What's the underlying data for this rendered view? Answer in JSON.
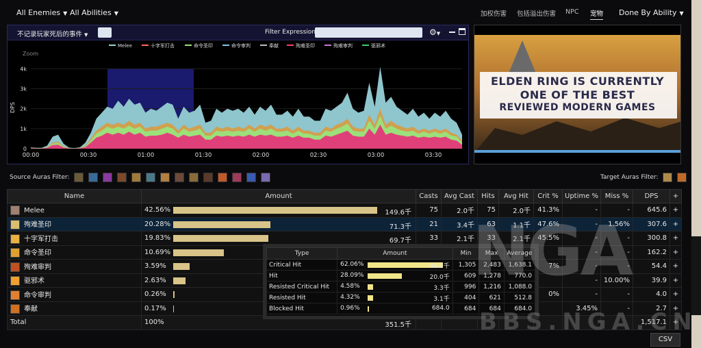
{
  "topbar": {
    "enemies": "All Enemies",
    "abilities": "All Abilities",
    "right_tabs": [
      "加权伤害",
      "包括溢出伤害",
      "NPC",
      "宠物"
    ],
    "active_tab": "宠物",
    "mode": "Done By Ability"
  },
  "graph": {
    "event_filter": "不记录玩家死后的事件",
    "filter_label": "Filter Expression:",
    "filter_value": "",
    "zoom_label": "Zoom",
    "ylabel": "DPS",
    "legend": [
      "Melee",
      "十字军打击",
      "命令圣印",
      "命令审判",
      "奉献",
      "殉难圣印",
      "殉难审判",
      "驱邪术"
    ],
    "legend_colors": [
      "#9ad4d8",
      "#ff6b5b",
      "#9be07a",
      "#7fc8e8",
      "#bdbdbd",
      "#ff3f6b",
      "#c77bd8",
      "#3fcf6f"
    ]
  },
  "chart_data": {
    "type": "area",
    "x_ticks": [
      "00:00",
      "00:30",
      "01:00",
      "01:30",
      "02:00",
      "02:30",
      "03:00",
      "03:30"
    ],
    "y_ticks": [
      "0",
      "1k",
      "2k",
      "3k",
      "4k"
    ],
    "ylim": [
      0,
      4800
    ],
    "xlim": [
      0,
      225
    ],
    "highlight_range": [
      40,
      85
    ],
    "series": [
      {
        "name": "Melee",
        "color": "#8fc5cc",
        "values": [
          60,
          40,
          40,
          150,
          600,
          700,
          250,
          50,
          30,
          70,
          300,
          800,
          1500,
          1800,
          2100,
          2000,
          2400,
          2100,
          2500,
          2200,
          2300,
          1800,
          2000,
          1900,
          2100,
          2300,
          2200,
          1500,
          2100,
          1800,
          1900,
          2200,
          1300,
          1400,
          2000,
          1800,
          2000,
          1900,
          2000,
          1800,
          2100,
          1700,
          2100,
          1900,
          2200,
          1700,
          1700,
          1900,
          1600,
          2000,
          1600,
          1600,
          1400,
          1400,
          2000,
          1900,
          2100,
          2300,
          2800,
          2000,
          1800,
          1900,
          3300,
          2100,
          4100,
          2300,
          2600,
          2100,
          1900,
          1700,
          2000,
          1600,
          1800,
          1500,
          1800,
          1600,
          1900,
          1500,
          1300,
          700
        ]
      },
      {
        "name": "命令审判",
        "color": "#d0a050",
        "values": [
          30,
          20,
          20,
          80,
          300,
          350,
          120,
          20,
          20,
          40,
          150,
          500,
          900,
          1100,
          1300,
          1200,
          1300,
          1200,
          1400,
          1200,
          1300,
          1000,
          1100,
          1100,
          1200,
          1300,
          1200,
          900,
          1200,
          1000,
          1100,
          1200,
          800,
          800,
          1100,
          1000,
          1100,
          1000,
          1100,
          1000,
          1200,
          1000,
          1200,
          1100,
          1200,
          1000,
          1000,
          1100,
          900,
          1100,
          900,
          900,
          800,
          800,
          1100,
          1000,
          1200,
          1300,
          1500,
          1100,
          1000,
          1000,
          1700,
          1200,
          2000,
          1200,
          1400,
          1200,
          1100,
          1000,
          1100,
          900,
          1000,
          900,
          1000,
          900,
          1000,
          800,
          700,
          400
        ]
      },
      {
        "name": "命令圣印",
        "color": "#9be07a",
        "values": [
          25,
          15,
          15,
          60,
          250,
          280,
          90,
          15,
          15,
          30,
          120,
          400,
          750,
          900,
          1100,
          1000,
          1100,
          1000,
          1150,
          1000,
          1100,
          850,
          900,
          900,
          1000,
          1100,
          1000,
          750,
          1000,
          850,
          900,
          1000,
          650,
          650,
          900,
          850,
          900,
          850,
          900,
          850,
          1000,
          850,
          1000,
          900,
          1000,
          850,
          850,
          900,
          750,
          900,
          750,
          750,
          650,
          650,
          900,
          850,
          1000,
          1100,
          1250,
          900,
          850,
          850,
          1400,
          1000,
          1650,
          1000,
          1150,
          1000,
          900,
          850,
          900,
          750,
          850,
          750,
          850,
          750,
          850,
          650,
          600,
          300
        ]
      },
      {
        "name": "十字军打击",
        "color": "#e0407a",
        "values": [
          20,
          10,
          10,
          40,
          180,
          200,
          60,
          10,
          10,
          20,
          80,
          300,
          550,
          650,
          800,
          700,
          800,
          700,
          850,
          700,
          800,
          600,
          650,
          650,
          700,
          800,
          700,
          550,
          700,
          600,
          650,
          700,
          450,
          450,
          650,
          600,
          650,
          600,
          650,
          600,
          700,
          600,
          700,
          650,
          700,
          600,
          600,
          650,
          550,
          650,
          550,
          550,
          450,
          450,
          650,
          600,
          700,
          800,
          900,
          650,
          600,
          600,
          1000,
          700,
          1200,
          700,
          800,
          700,
          650,
          600,
          650,
          550,
          600,
          550,
          600,
          550,
          600,
          450,
          400,
          200
        ]
      }
    ]
  },
  "ad": {
    "line1": "ELDEN RING IS CURRENTLY",
    "line2": "ONE OF THE BEST",
    "line3": "REVIEWED MODERN GAMES"
  },
  "auras": {
    "source_label": "Source Auras Filter:",
    "target_label": "Target Auras Filter:",
    "source_colors": [
      "#6a5a3a",
      "#3a6a9a",
      "#8a3aa0",
      "#7a4a2a",
      "#a07a3a",
      "#4a7a8a",
      "#b08040",
      "#6a4a3a",
      "#8a6a3a",
      "#5a3a2a",
      "#c05a2a",
      "#a03a5a",
      "#3a5ab0",
      "#7a6ab0"
    ],
    "target_colors": [
      "#b08a4a",
      "#c06a2a"
    ]
  },
  "table": {
    "headers": [
      "Name",
      "Amount",
      "Casts",
      "Avg Cast",
      "Hits",
      "Avg Hit",
      "Crit %",
      "Uptime %",
      "Miss %",
      "DPS",
      "+"
    ],
    "rows": [
      {
        "name": "Melee",
        "pct": "42.56%",
        "bar": 0.9925,
        "amount": "149.6千",
        "casts": "75",
        "avg_cast": "2.0千",
        "hits": "75",
        "avg_hit": "2.0千",
        "crit": "41.3%",
        "uptime": "-",
        "miss": "-",
        "dps": "645.6",
        "icon": "#a08070"
      },
      {
        "name": "殉难圣印",
        "pct": "20.28%",
        "bar": 0.473,
        "amount": "71.3千",
        "casts": "21",
        "avg_cast": "3.4千",
        "hits": "63",
        "avg_hit": "1.1千",
        "crit": "47.6%",
        "uptime": "-",
        "miss": "1.56%",
        "dps": "307.6",
        "icon": "#d8c070"
      },
      {
        "name": "十字军打击",
        "pct": "19.83%",
        "bar": 0.462,
        "amount": "69.7千",
        "casts": "33",
        "avg_cast": "2.1千",
        "hits": "33",
        "avg_hit": "2.1千",
        "crit": "45.5%",
        "uptime": "-",
        "miss": "-",
        "dps": "300.8",
        "icon": "#e8b040"
      },
      {
        "name": "命令圣印",
        "pct": "10.69%",
        "bar": 0.248,
        "amount": "",
        "casts": "",
        "avg_cast": "",
        "hits": "",
        "avg_hit": "",
        "crit": "",
        "uptime": "-",
        "miss": "-",
        "dps": "162.2",
        "icon": "#e0a030"
      },
      {
        "name": "殉难审判",
        "pct": "3.59%",
        "bar": 0.08,
        "amount": "",
        "casts": "",
        "avg_cast": "",
        "hits": "",
        "avg_hit": "",
        "crit": "7%",
        "uptime": "-",
        "miss": "-",
        "dps": "54.4",
        "icon": "#c05020"
      },
      {
        "name": "驱邪术",
        "pct": "2.63%",
        "bar": 0.06,
        "amount": "",
        "casts": "",
        "avg_cast": "",
        "hits": "",
        "avg_hit": "",
        "crit": "",
        "uptime": "-",
        "miss": "10.00%",
        "dps": "39.9",
        "icon": "#f0a030"
      },
      {
        "name": "命令审判",
        "pct": "0.26%",
        "bar": 0.006,
        "amount": "",
        "casts": "",
        "avg_cast": "",
        "hits": "",
        "avg_hit": "",
        "crit": "0%",
        "uptime": "-",
        "miss": "-",
        "dps": "4.0",
        "icon": "#e08030"
      },
      {
        "name": "奉献",
        "pct": "0.17%",
        "bar": 0.004,
        "amount": "",
        "casts": "",
        "avg_cast": "",
        "hits": "",
        "avg_hit": "",
        "crit": "",
        "uptime": "3.45%",
        "miss": "-",
        "dps": "2.7",
        "icon": "#d07020"
      }
    ],
    "total": {
      "name": "Total",
      "pct": "100%",
      "amount": "351.5千",
      "dps": "1,517.1"
    }
  },
  "tooltip": {
    "headers": [
      "Type",
      "Amount",
      "Min",
      "Max",
      "Average"
    ],
    "rows": [
      {
        "type": "Critical Hit",
        "pct": "62.06%",
        "bar": 1.0,
        "amount": "44.2千",
        "min": "1,305",
        "max": "2,483",
        "avg": "1,638.1"
      },
      {
        "type": "Hit",
        "pct": "28.09%",
        "bar": 0.45,
        "amount": "20.0千",
        "min": "609",
        "max": "1,278",
        "avg": "770.0"
      },
      {
        "type": "Resisted Critical Hit",
        "pct": "4.58%",
        "bar": 0.074,
        "amount": "3.3千",
        "min": "996",
        "max": "1,216",
        "avg": "1,088.0"
      },
      {
        "type": "Resisted Hit",
        "pct": "4.32%",
        "bar": 0.07,
        "amount": "3.1千",
        "min": "404",
        "max": "621",
        "avg": "512.8"
      },
      {
        "type": "Blocked Hit",
        "pct": "0.96%",
        "bar": 0.015,
        "amount": "684.0",
        "min": "684",
        "max": "684",
        "avg": "684.0"
      }
    ]
  },
  "watermark": {
    "big": "NGA",
    "site": "BBS.NGA.CN"
  },
  "csv_label": "CSV"
}
